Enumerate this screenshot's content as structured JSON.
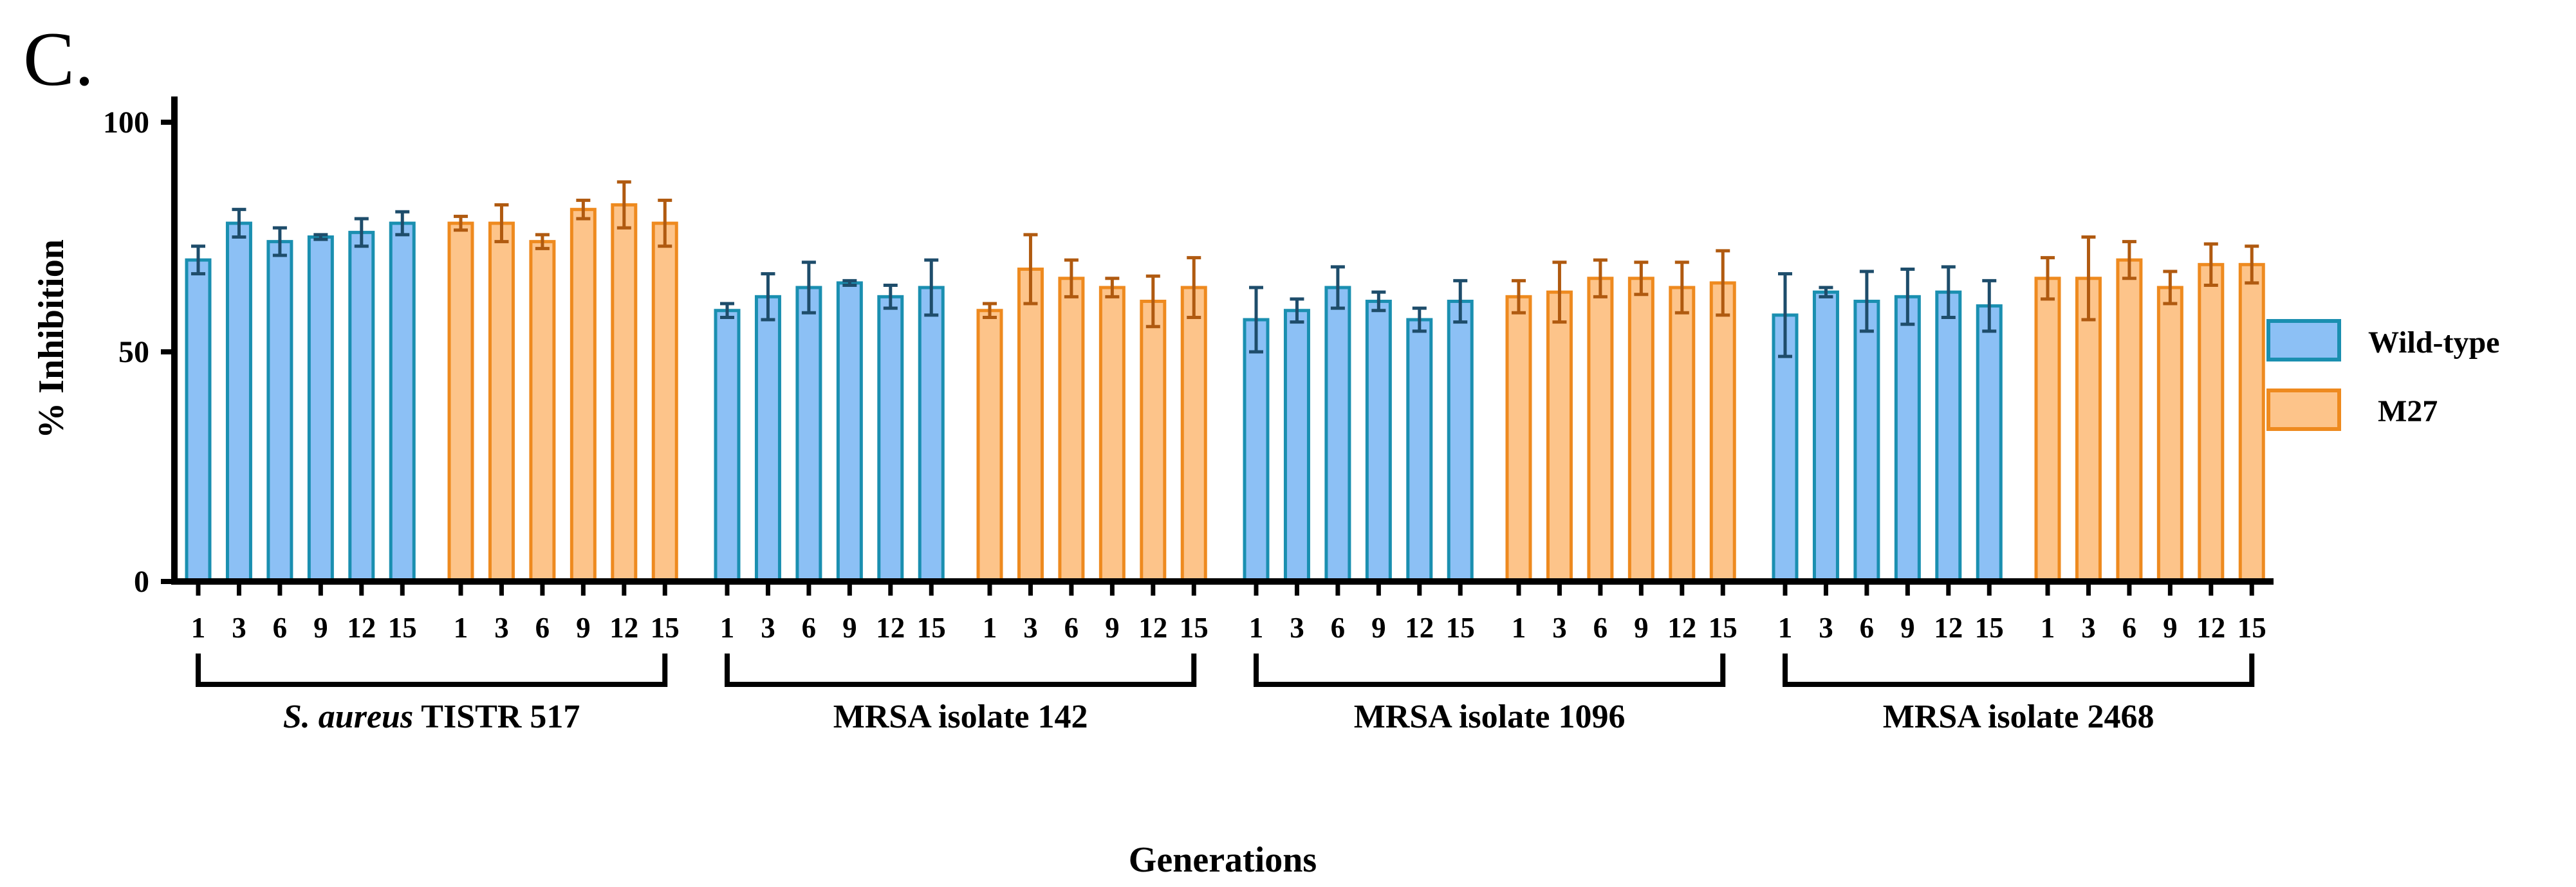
{
  "panel_label": "C.",
  "chart_data": {
    "type": "bar",
    "title": "",
    "xlabel": "Generations",
    "ylabel": "% Inhibition",
    "ylim": [
      0,
      100
    ],
    "yticks": [
      "0",
      "50",
      "100"
    ],
    "generations": [
      "1",
      "3",
      "6",
      "9",
      "12",
      "15"
    ],
    "groups": [
      {
        "name_prefix_italic": "S. aureus",
        "name_suffix": " TISTR 517"
      },
      {
        "name_prefix_italic": "",
        "name_suffix": "MRSA isolate 142"
      },
      {
        "name_prefix_italic": "",
        "name_suffix": "MRSA isolate 1096"
      },
      {
        "name_prefix_italic": "",
        "name_suffix": "MRSA isolate 2468"
      }
    ],
    "series": [
      {
        "name": "Wild-type",
        "fill": "#8cc0f5",
        "stroke": "#1a8fb0",
        "err_color": "#1e4d6b",
        "values": [
          [
            70,
            78,
            74,
            75,
            76,
            78
          ],
          [
            59,
            62,
            64,
            65,
            62,
            64
          ],
          [
            57,
            59,
            64,
            61,
            57,
            61
          ],
          [
            58,
            63,
            61,
            62,
            63,
            60
          ]
        ],
        "errors": [
          [
            3,
            3,
            3,
            0.5,
            3,
            2.5
          ],
          [
            1.5,
            5,
            5.5,
            0.5,
            2.5,
            6
          ],
          [
            7,
            2.5,
            4.5,
            2,
            2.5,
            4.5
          ],
          [
            9,
            1,
            6.5,
            6,
            5.5,
            5.5
          ]
        ]
      },
      {
        "name": "M27",
        "fill": "#fdc48a",
        "stroke": "#ee8a1f",
        "err_color": "#b05a10",
        "values": [
          [
            78,
            78,
            74,
            81,
            82,
            78
          ],
          [
            59,
            68,
            66,
            64,
            61,
            64
          ],
          [
            62,
            63,
            66,
            66,
            64,
            65
          ],
          [
            66,
            66,
            70,
            64,
            69,
            69
          ]
        ],
        "errors": [
          [
            1.5,
            4,
            1.5,
            2,
            5,
            5
          ],
          [
            1.5,
            7.5,
            4,
            2,
            5.5,
            6.5
          ],
          [
            3.5,
            6.5,
            4,
            3.5,
            5.5,
            7
          ],
          [
            4.5,
            9,
            4,
            3.5,
            4.5,
            4
          ]
        ]
      }
    ],
    "legend": {
      "position": "right",
      "entries": [
        "Wild-type",
        "M27"
      ]
    }
  }
}
